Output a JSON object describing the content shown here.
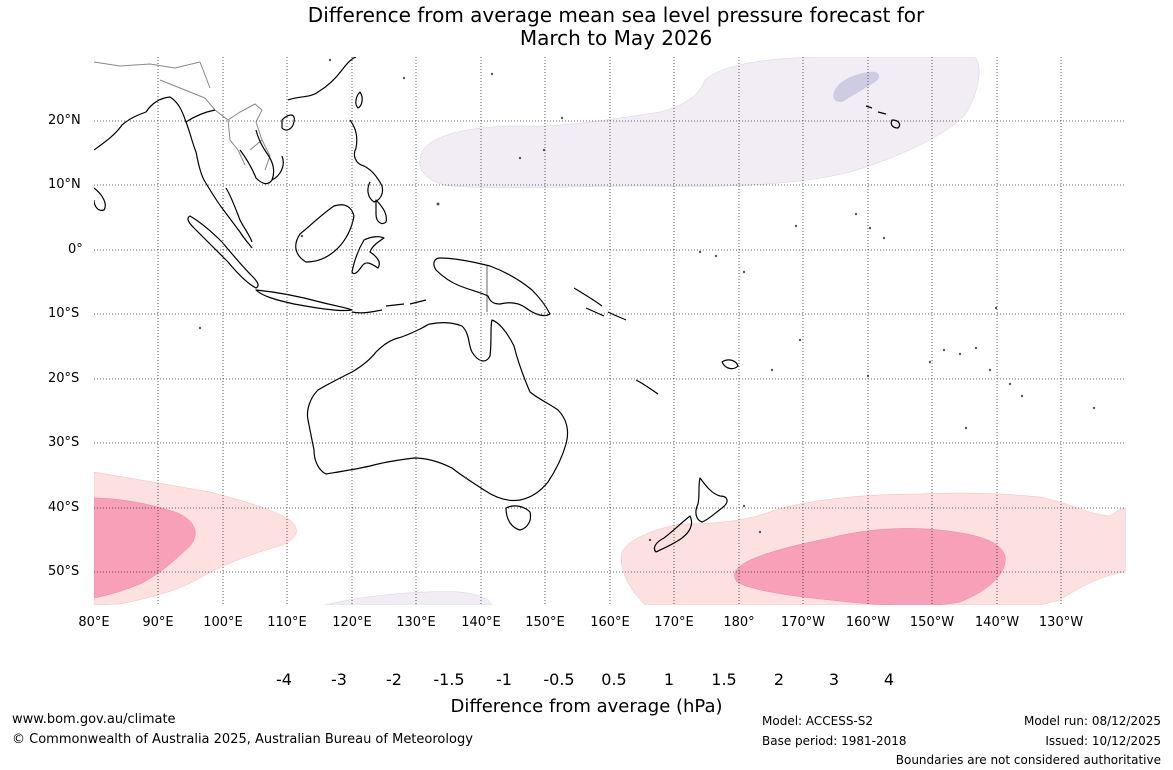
{
  "title": {
    "line1": "Difference from average mean sea level pressure forecast for",
    "line2": "March to May 2026"
  },
  "latitude_labels": [
    "20°N",
    "10°N",
    "0°",
    "10°S",
    "20°S",
    "30°S",
    "40°S",
    "50°S"
  ],
  "longitude_labels": [
    "80°E",
    "90°E",
    "100°E",
    "110°E",
    "120°E",
    "130°E",
    "140°E",
    "150°E",
    "160°E",
    "170°E",
    "180°",
    "170°W",
    "160°W",
    "150°W",
    "140°W",
    "130°W"
  ],
  "colorbar": {
    "title": "Difference from average (hPa)",
    "tick_labels": [
      "-4",
      "-3",
      "-2",
      "-1.5",
      "-1",
      "-0.5",
      "0.5",
      "1",
      "1.5",
      "2",
      "3",
      "4"
    ],
    "colors": [
      "#0b6b57",
      "#1b9096",
      "#6aaad3",
      "#a2b8d6",
      "#cecbe3",
      "#f2edf4",
      "#ffffff",
      "#fde0e0",
      "#f8a0b8",
      "#dc3d98",
      "#b0077e",
      "#7e0a78",
      "#4a0a5a"
    ]
  },
  "anomaly_colors": {
    "slightly_below": "#f2edf4",
    "below": "#cecbe3",
    "slightly_above": "#fde0e0",
    "above": "#f8a0b8"
  },
  "footer": {
    "website": "www.bom.gov.au/climate",
    "copyright": "© Commonwealth of Australia 2025, Australian Bureau of Meteorology",
    "model": "Model: ACCESS-S2",
    "base_period": "Base period: 1981-2018",
    "model_run": "Model run: 08/12/2025",
    "issued": "Issued: 10/12/2025",
    "disclaimer": "Boundaries are not considered authoritative"
  }
}
